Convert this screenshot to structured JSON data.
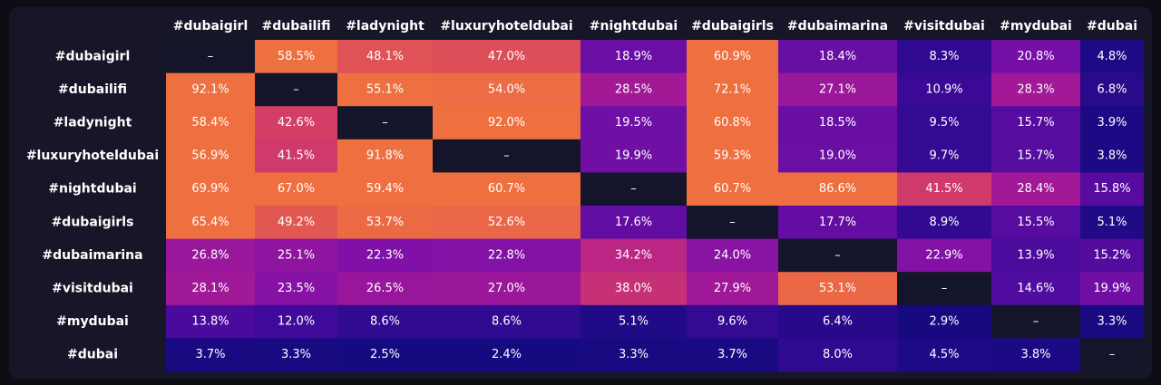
{
  "chart_data": {
    "type": "heatmap",
    "columns": [
      "#dubaigirl",
      "#dubailifi",
      "#ladynight",
      "#luxuryhoteldubai",
      "#nightdubai",
      "#dubaigirls",
      "#dubaimarina",
      "#visitdubai",
      "#mydubai",
      "#dubai"
    ],
    "rows": [
      "#dubaigirl",
      "#dubailifi",
      "#ladynight",
      "#luxuryhoteldubai",
      "#nightdubai",
      "#dubaigirls",
      "#dubaimarina",
      "#visitdubai",
      "#mydubai",
      "#dubai"
    ],
    "values": [
      [
        null,
        58.5,
        48.1,
        47.0,
        18.9,
        60.9,
        18.4,
        8.3,
        20.8,
        4.8
      ],
      [
        92.1,
        null,
        55.1,
        54.0,
        28.5,
        72.1,
        27.1,
        10.9,
        28.3,
        6.8
      ],
      [
        58.4,
        42.6,
        null,
        92.0,
        19.5,
        60.8,
        18.5,
        9.5,
        15.7,
        3.9
      ],
      [
        56.9,
        41.5,
        91.8,
        null,
        19.9,
        59.3,
        19.0,
        9.7,
        15.7,
        3.8
      ],
      [
        69.9,
        67.0,
        59.4,
        60.7,
        null,
        60.7,
        86.6,
        41.5,
        28.4,
        15.8
      ],
      [
        65.4,
        49.2,
        53.7,
        52.6,
        17.6,
        null,
        17.7,
        8.9,
        15.5,
        5.1
      ],
      [
        26.8,
        25.1,
        22.3,
        22.8,
        34.2,
        24.0,
        null,
        22.9,
        13.9,
        15.2
      ],
      [
        28.1,
        23.5,
        26.5,
        27.0,
        38.0,
        27.9,
        53.1,
        null,
        14.6,
        19.9
      ],
      [
        13.8,
        12.0,
        8.6,
        8.6,
        5.1,
        9.6,
        6.4,
        2.9,
        null,
        3.3
      ],
      [
        3.7,
        3.3,
        2.5,
        2.4,
        3.3,
        3.7,
        8.0,
        4.5,
        3.8,
        null
      ]
    ],
    "value_suffix": "%",
    "diagonal_label": "–",
    "colors": {
      "background": "#161628",
      "diagonal": "#14142a",
      "text": "#ffffff",
      "scale": [
        "#0a0a78",
        "#3f0a9a",
        "#7e10a8",
        "#b51e8c",
        "#d8455e",
        "#ee7040"
      ]
    }
  }
}
